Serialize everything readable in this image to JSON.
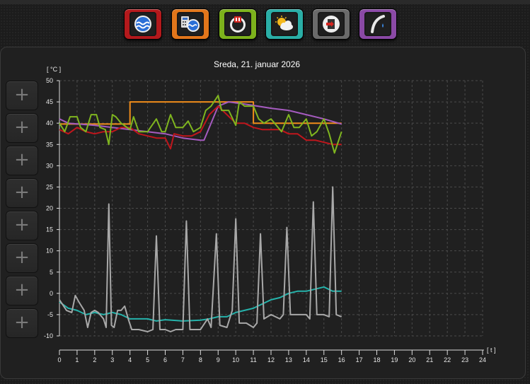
{
  "toolbar": {
    "buttons": [
      {
        "name": "heating-circuit",
        "icon": "water-tank-icon",
        "color": "#b3191c"
      },
      {
        "name": "controller",
        "icon": "calculator-tank-icon",
        "color": "#e2761b"
      },
      {
        "name": "boiler",
        "icon": "heat-source-icon",
        "color": "#7db21c"
      },
      {
        "name": "weather",
        "icon": "weather-sun-cloud-icon",
        "color": "#2aaea6"
      },
      {
        "name": "exit",
        "icon": "exit-door-icon",
        "color": "#6a6a6a"
      },
      {
        "name": "tap",
        "icon": "water-tap-icon",
        "color": "#8a49a5"
      }
    ]
  },
  "side_buttons": {
    "label": "+",
    "count": 8
  },
  "chart_data": {
    "type": "line",
    "title": "Sreda, 21. januar 2026",
    "ylabel": "[ °C ]",
    "xlabel": "[ t ]",
    "xlim": [
      0,
      24
    ],
    "ylim": [
      -10,
      50
    ],
    "xticks": [
      0,
      1,
      2,
      3,
      4,
      5,
      6,
      7,
      8,
      9,
      10,
      11,
      12,
      13,
      14,
      15,
      16,
      17,
      18,
      19,
      20,
      21,
      22,
      23,
      24
    ],
    "yticks": [
      -10,
      -5,
      0,
      5,
      10,
      15,
      20,
      25,
      30,
      35,
      40,
      45,
      50
    ],
    "grid": true,
    "series": [
      {
        "color": "#f08c1a",
        "points": [
          [
            0,
            39.8
          ],
          [
            4,
            39.8
          ],
          [
            4,
            45
          ],
          [
            11,
            45
          ],
          [
            11,
            40
          ],
          [
            16,
            40
          ]
        ]
      },
      {
        "color": "#a55bbf",
        "points": [
          [
            0,
            41
          ],
          [
            0.5,
            40
          ],
          [
            2,
            39.5
          ],
          [
            3,
            39
          ],
          [
            4,
            38.5
          ],
          [
            5,
            38
          ],
          [
            6,
            37.5
          ],
          [
            7,
            36.5
          ],
          [
            8,
            36
          ],
          [
            8.2,
            36
          ],
          [
            8.6,
            40
          ],
          [
            9,
            44
          ],
          [
            9.6,
            45
          ],
          [
            10.5,
            44.5
          ],
          [
            12,
            43.5
          ],
          [
            13,
            43
          ],
          [
            14,
            42
          ],
          [
            15,
            41
          ],
          [
            16,
            39.8
          ]
        ]
      },
      {
        "color": "#c0161c",
        "points": [
          [
            0,
            38.5
          ],
          [
            0.5,
            37.5
          ],
          [
            1,
            39
          ],
          [
            1.5,
            38
          ],
          [
            2,
            37.5
          ],
          [
            2.5,
            38
          ],
          [
            3,
            38
          ],
          [
            3.5,
            39
          ],
          [
            4,
            39
          ],
          [
            4.5,
            37.5
          ],
          [
            5,
            37
          ],
          [
            5.5,
            36.5
          ],
          [
            6,
            36.5
          ],
          [
            6.3,
            34
          ],
          [
            6.5,
            37.5
          ],
          [
            7,
            37
          ],
          [
            7.5,
            37
          ],
          [
            8,
            38
          ],
          [
            8.5,
            42
          ],
          [
            9,
            44
          ],
          [
            9.5,
            42
          ],
          [
            10,
            40
          ],
          [
            10.5,
            40
          ],
          [
            11,
            39
          ],
          [
            11.5,
            38.5
          ],
          [
            12,
            38.5
          ],
          [
            12.5,
            38.5
          ],
          [
            13,
            37.5
          ],
          [
            13.5,
            37.5
          ],
          [
            14,
            36
          ],
          [
            14.5,
            36
          ],
          [
            15,
            35.5
          ],
          [
            15.5,
            35
          ],
          [
            16,
            35
          ]
        ]
      },
      {
        "color": "#7fb51f",
        "points": [
          [
            0,
            40
          ],
          [
            0.3,
            38
          ],
          [
            0.6,
            41.5
          ],
          [
            1,
            41.5
          ],
          [
            1.2,
            39
          ],
          [
            1.5,
            38
          ],
          [
            1.8,
            42
          ],
          [
            2.1,
            42
          ],
          [
            2.3,
            39
          ],
          [
            2.6,
            38.5
          ],
          [
            2.8,
            35
          ],
          [
            3,
            42
          ],
          [
            3.2,
            41.5
          ],
          [
            3.5,
            40
          ],
          [
            4,
            38.5
          ],
          [
            4.2,
            41.5
          ],
          [
            4.5,
            38
          ],
          [
            5,
            38
          ],
          [
            5.5,
            41
          ],
          [
            5.8,
            38
          ],
          [
            6,
            38
          ],
          [
            6.3,
            42
          ],
          [
            6.6,
            39
          ],
          [
            7,
            39
          ],
          [
            7.3,
            40.5
          ],
          [
            7.6,
            38
          ],
          [
            8,
            39
          ],
          [
            8.3,
            43
          ],
          [
            8.6,
            44
          ],
          [
            9,
            46.5
          ],
          [
            9.2,
            43
          ],
          [
            9.6,
            43
          ],
          [
            10,
            39.5
          ],
          [
            10.2,
            45
          ],
          [
            10.5,
            44
          ],
          [
            11,
            44
          ],
          [
            11.3,
            41
          ],
          [
            11.6,
            40
          ],
          [
            12,
            41
          ],
          [
            12.3,
            39.5
          ],
          [
            12.6,
            38
          ],
          [
            13,
            42
          ],
          [
            13.3,
            39
          ],
          [
            13.6,
            39
          ],
          [
            14,
            41
          ],
          [
            14.3,
            37
          ],
          [
            14.6,
            38
          ],
          [
            15,
            41
          ],
          [
            15.3,
            37.5
          ],
          [
            15.6,
            33
          ],
          [
            16,
            38
          ]
        ]
      },
      {
        "color": "#26b3ab",
        "points": [
          [
            0,
            -2
          ],
          [
            0.5,
            -3.5
          ],
          [
            1,
            -4
          ],
          [
            1.5,
            -5
          ],
          [
            2,
            -4.5
          ],
          [
            2.5,
            -5
          ],
          [
            3,
            -4.5
          ],
          [
            3.5,
            -5
          ],
          [
            4,
            -6
          ],
          [
            5,
            -6
          ],
          [
            5.5,
            -6.5
          ],
          [
            6,
            -6.2
          ],
          [
            7,
            -6.5
          ],
          [
            8,
            -6.3
          ],
          [
            8.5,
            -6
          ],
          [
            9,
            -5.5
          ],
          [
            9.5,
            -5.5
          ],
          [
            10,
            -4.5
          ],
          [
            10.5,
            -4
          ],
          [
            11,
            -3.5
          ],
          [
            11.5,
            -2.5
          ],
          [
            12,
            -1.5
          ],
          [
            12.5,
            -1
          ],
          [
            13,
            0
          ],
          [
            13.5,
            0.5
          ],
          [
            14,
            0.5
          ],
          [
            14.5,
            1
          ],
          [
            15,
            1.5
          ],
          [
            15.5,
            0.5
          ],
          [
            16,
            0.5
          ]
        ]
      },
      {
        "color": "#a8a8a8",
        "points": [
          [
            0,
            -1.5
          ],
          [
            0.4,
            -4
          ],
          [
            0.7,
            -4.5
          ],
          [
            0.9,
            -0.5
          ],
          [
            1.1,
            -2
          ],
          [
            1.4,
            -4
          ],
          [
            1.6,
            -8
          ],
          [
            1.8,
            -4.5
          ],
          [
            2,
            -4
          ],
          [
            2.2,
            -4.5
          ],
          [
            2.5,
            -6
          ],
          [
            2.65,
            -8
          ],
          [
            2.8,
            21
          ],
          [
            2.95,
            -7.5
          ],
          [
            3.1,
            -8
          ],
          [
            3.3,
            -4
          ],
          [
            3.5,
            -4
          ],
          [
            3.7,
            -3
          ],
          [
            3.9,
            -6
          ],
          [
            4.1,
            -8.5
          ],
          [
            4.5,
            -8.5
          ],
          [
            5,
            -9
          ],
          [
            5.3,
            -8.5
          ],
          [
            5.5,
            13.5
          ],
          [
            5.7,
            -8.5
          ],
          [
            6,
            -8.5
          ],
          [
            6.3,
            -9
          ],
          [
            6.6,
            -8.5
          ],
          [
            7,
            -8.5
          ],
          [
            7.2,
            17
          ],
          [
            7.4,
            -8.5
          ],
          [
            8,
            -8.5
          ],
          [
            8.4,
            -6
          ],
          [
            8.6,
            -8
          ],
          [
            8.9,
            14
          ],
          [
            9.1,
            -7.5
          ],
          [
            9.5,
            -8
          ],
          [
            9.8,
            -4
          ],
          [
            10,
            17.5
          ],
          [
            10.2,
            -7
          ],
          [
            10.6,
            -7
          ],
          [
            11,
            -8
          ],
          [
            11.2,
            -7
          ],
          [
            11.4,
            14
          ],
          [
            11.6,
            -6
          ],
          [
            12,
            -5
          ],
          [
            12.5,
            -6
          ],
          [
            12.7,
            -5
          ],
          [
            12.9,
            15.5
          ],
          [
            13.1,
            -5
          ],
          [
            13.5,
            -5
          ],
          [
            14,
            -5
          ],
          [
            14.2,
            -6
          ],
          [
            14.4,
            21.5
          ],
          [
            14.6,
            -5
          ],
          [
            15,
            -5
          ],
          [
            15.3,
            -5.5
          ],
          [
            15.5,
            25
          ],
          [
            15.7,
            -5
          ],
          [
            16,
            -5.5
          ]
        ]
      }
    ]
  }
}
